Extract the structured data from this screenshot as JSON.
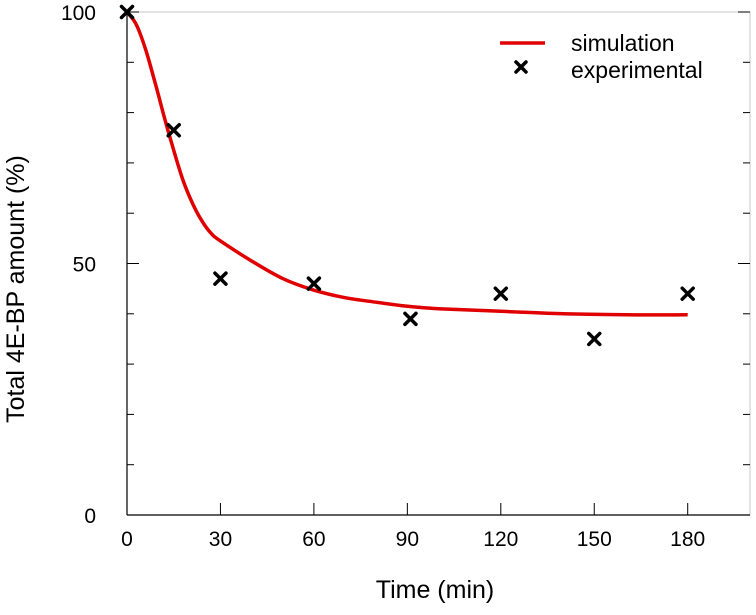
{
  "chart_data": {
    "type": "line",
    "xlabel": "Time (min)",
    "ylabel": "Total 4E-BP amount (%)",
    "xlim": [
      0,
      200
    ],
    "ylim": [
      0,
      100
    ],
    "x_ticks": [
      0,
      30,
      60,
      90,
      120,
      150,
      180
    ],
    "x_tick_labels": [
      "0",
      "30",
      "60",
      "90",
      "120",
      "150",
      "180"
    ],
    "y_ticks": [
      0,
      50,
      100
    ],
    "y_tick_labels": [
      "0",
      "50",
      "100"
    ],
    "y_minor_ticks": [
      10,
      20,
      30,
      40,
      60,
      70,
      80,
      90
    ],
    "grid": false,
    "legend_position": "top-right",
    "series": [
      {
        "name": "simulation",
        "kind": "line",
        "color": "#e00000",
        "x": [
          0,
          3,
          6,
          9,
          12,
          15,
          18,
          21,
          24,
          27,
          30,
          40,
          50,
          60,
          70,
          80,
          90,
          100,
          120,
          140,
          160,
          180
        ],
        "y": [
          100,
          97.5,
          92.5,
          86,
          79,
          72.5,
          66.5,
          62,
          58.5,
          56,
          54.5,
          50.5,
          47,
          44.7,
          43.2,
          42.3,
          41.5,
          41,
          40.5,
          40,
          39.8,
          39.8
        ]
      },
      {
        "name": "experimental",
        "kind": "scatter",
        "marker": "x",
        "color": "#000000",
        "x": [
          0,
          15,
          30,
          60,
          91,
          120,
          150,
          180
        ],
        "y": [
          100,
          76.5,
          47,
          46,
          39,
          44,
          35,
          44
        ]
      }
    ]
  }
}
